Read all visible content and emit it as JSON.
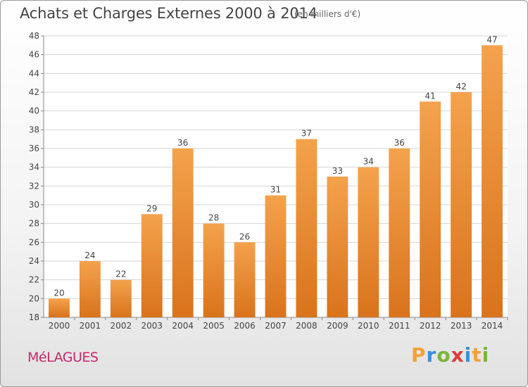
{
  "chart_data": {
    "type": "bar",
    "title": "Achats et Charges Externes 2000 à 2014",
    "subtitle": "(en milliers d'€)",
    "categories": [
      "2000",
      "2001",
      "2002",
      "2003",
      "2004",
      "2005",
      "2006",
      "2007",
      "2008",
      "2009",
      "2010",
      "2011",
      "2012",
      "2013",
      "2014"
    ],
    "values": [
      20,
      24,
      22,
      29,
      36,
      28,
      26,
      31,
      37,
      33,
      34,
      36,
      41,
      42,
      47
    ],
    "ylim": [
      18,
      48
    ],
    "yticks": [
      18,
      20,
      22,
      24,
      26,
      28,
      30,
      32,
      34,
      36,
      38,
      40,
      42,
      44,
      46,
      48
    ],
    "grid": true,
    "bar_color": "#f4a24c",
    "bar_color_dark": "#d9731c"
  },
  "commune": "MéLAGUES",
  "logo": {
    "letters": [
      "P",
      "r",
      "o",
      "x",
      "i",
      "t",
      "i"
    ],
    "colors": [
      "#f2a23a",
      "#3a8fd6",
      "#7ab53a",
      "#e03a3a",
      "#3a8fd6",
      "#f2a23a",
      "#7ab53a"
    ]
  }
}
